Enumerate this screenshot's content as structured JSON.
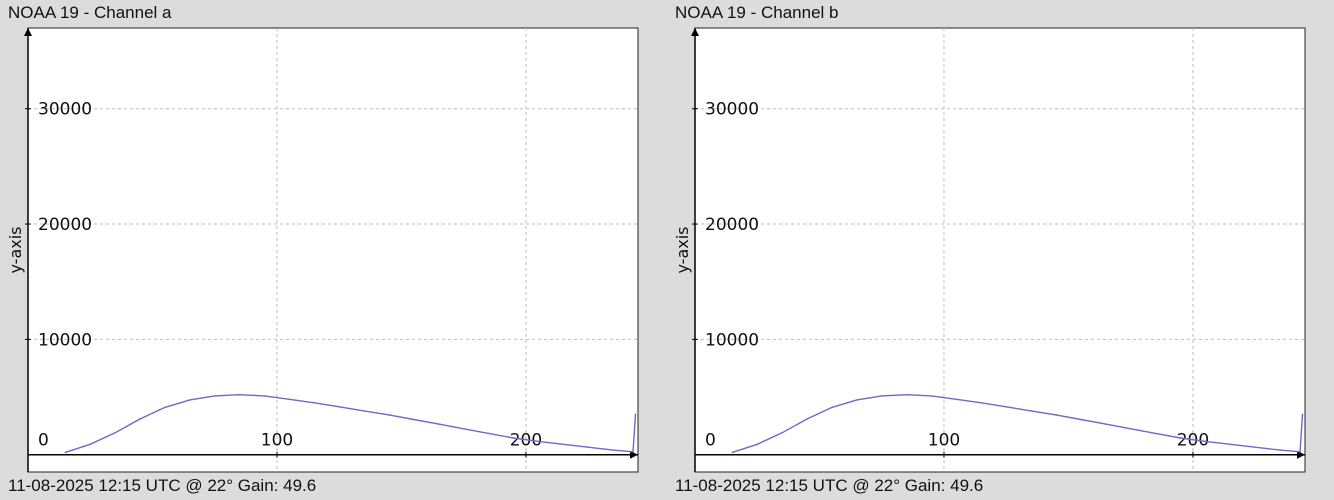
{
  "chart_data": [
    {
      "type": "line",
      "title": "NOAA 19 - Channel a",
      "footer": "11-08-2025 12:15 UTC @ 22° Gain: 49.6",
      "ylabel": "y-axis",
      "xlabel": "",
      "xlim": [
        0,
        245
      ],
      "ylim": [
        -1500,
        37000
      ],
      "x_ticks": [
        0,
        100,
        200
      ],
      "y_ticks": [
        10000,
        20000,
        30000
      ],
      "grid": true,
      "series": [
        {
          "color": "#6b6bc8",
          "x": [
            15,
            25,
            35,
            45,
            55,
            65,
            75,
            85,
            95,
            105,
            115,
            125,
            135,
            145,
            155,
            165,
            175,
            185,
            195,
            205,
            215,
            225,
            235,
            243,
            244
          ],
          "y": [
            200,
            900,
            1900,
            3100,
            4100,
            4750,
            5100,
            5200,
            5100,
            4800,
            4500,
            4150,
            3800,
            3450,
            3050,
            2650,
            2250,
            1850,
            1450,
            1150,
            900,
            650,
            400,
            250,
            3500
          ]
        }
      ]
    },
    {
      "type": "line",
      "title": "NOAA 19 - Channel b",
      "footer": "11-08-2025 12:15 UTC @ 22° Gain: 49.6",
      "ylabel": "y-axis",
      "xlabel": "",
      "xlim": [
        0,
        245
      ],
      "ylim": [
        -1500,
        37000
      ],
      "x_ticks": [
        0,
        100,
        200
      ],
      "y_ticks": [
        10000,
        20000,
        30000
      ],
      "grid": true,
      "series": [
        {
          "color": "#6b6bc8",
          "x": [
            15,
            25,
            35,
            45,
            55,
            65,
            75,
            85,
            95,
            105,
            115,
            125,
            135,
            145,
            155,
            165,
            175,
            185,
            195,
            205,
            215,
            225,
            235,
            243,
            244
          ],
          "y": [
            200,
            900,
            1900,
            3100,
            4100,
            4750,
            5100,
            5200,
            5100,
            4800,
            4500,
            4150,
            3800,
            3450,
            3050,
            2650,
            2250,
            1850,
            1450,
            1150,
            900,
            650,
            400,
            250,
            3500
          ]
        }
      ]
    }
  ]
}
